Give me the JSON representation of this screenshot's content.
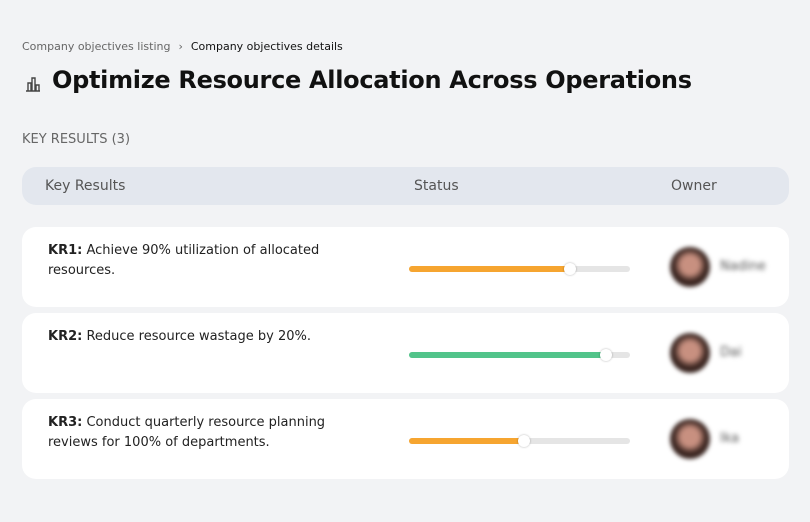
{
  "breadcrumb": {
    "parent": "Company objectives listing",
    "separator": "›",
    "current": "Company objectives details"
  },
  "title": "Optimize Resource Allocation Across Operations",
  "section_label": "KEY RESULTS (3)",
  "table": {
    "headers": [
      "Key Results",
      "Status",
      "Owner"
    ],
    "rows": [
      {
        "label": "KR1:",
        "text": "Achieve 90% utilization of allocated resources.",
        "progress": 0.73,
        "color": "#f6a530",
        "owner": "Nadine"
      },
      {
        "label": "KR2:",
        "text": "Reduce resource wastage by 20%.",
        "progress": 0.89,
        "color": "#52c48a",
        "owner": "Dai"
      },
      {
        "label": "KR3:",
        "text": "Conduct quarterly resource planning reviews for 100% of departments.",
        "progress": 0.52,
        "color": "#f6a530",
        "owner": "Ika"
      }
    ]
  }
}
